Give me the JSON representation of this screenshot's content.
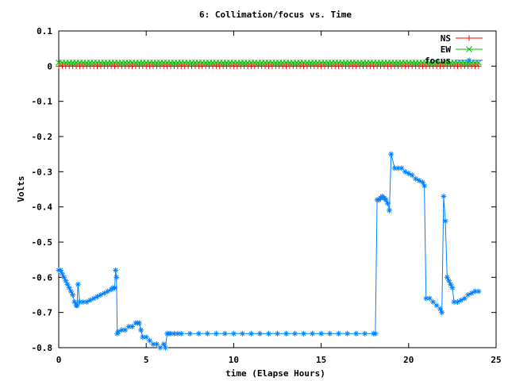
{
  "chart_data": {
    "type": "line",
    "title": "6: Collimation/focus vs. Time",
    "xlabel": "time (Elapse Hours)",
    "ylabel": "Volts",
    "xlim": [
      0,
      25
    ],
    "ylim": [
      -0.8,
      0.1
    ],
    "xticks": [
      0,
      5,
      10,
      15,
      20,
      25
    ],
    "yticks": [
      0.1,
      0,
      -0.1,
      -0.2,
      -0.3,
      -0.4,
      -0.5,
      -0.6,
      -0.7,
      -0.8
    ],
    "grid": false,
    "legend_position": "top-right",
    "series": [
      {
        "name": "NS",
        "color": "#ff0000",
        "marker": "plus",
        "x": [
          0,
          0.2,
          0.4,
          0.6,
          0.8,
          1,
          1.2,
          1.4,
          1.6,
          1.8,
          2,
          2.2,
          2.4,
          2.6,
          2.8,
          3,
          3.2,
          3.4,
          3.6,
          3.8,
          4,
          4.2,
          4.4,
          4.6,
          4.8,
          5,
          5.2,
          5.4,
          5.6,
          5.8,
          6,
          6.2,
          6.4,
          6.6,
          6.8,
          7,
          7.2,
          7.4,
          7.6,
          7.8,
          8,
          8.2,
          8.4,
          8.6,
          8.8,
          9,
          9.2,
          9.4,
          9.6,
          9.8,
          10,
          10.2,
          10.4,
          10.6,
          10.8,
          11,
          11.2,
          11.4,
          11.6,
          11.8,
          12,
          12.2,
          12.4,
          12.6,
          12.8,
          13,
          13.2,
          13.4,
          13.6,
          13.8,
          14,
          14.2,
          14.4,
          14.6,
          14.8,
          15,
          15.2,
          15.4,
          15.6,
          15.8,
          16,
          16.2,
          16.4,
          16.6,
          16.8,
          17,
          17.2,
          17.4,
          17.6,
          17.8,
          18,
          18.2,
          18.4,
          18.6,
          18.8,
          19,
          19.2,
          19.4,
          19.6,
          19.8,
          20,
          20.2,
          20.4,
          20.6,
          20.8,
          21,
          21.2,
          21.4,
          21.6,
          21.8,
          22,
          22.2,
          22.4,
          22.6,
          22.8,
          23,
          23.2,
          23.4,
          23.6,
          23.8,
          24
        ],
        "y_constant": 0.0
      },
      {
        "name": "EW",
        "color": "#00c000",
        "marker": "x",
        "x": [
          0,
          0.2,
          0.4,
          0.6,
          0.8,
          1,
          1.2,
          1.4,
          1.6,
          1.8,
          2,
          2.2,
          2.4,
          2.6,
          2.8,
          3,
          3.2,
          3.4,
          3.6,
          3.8,
          4,
          4.2,
          4.4,
          4.6,
          4.8,
          5,
          5.2,
          5.4,
          5.6,
          5.8,
          6,
          6.2,
          6.4,
          6.6,
          6.8,
          7,
          7.2,
          7.4,
          7.6,
          7.8,
          8,
          8.2,
          8.4,
          8.6,
          8.8,
          9,
          9.2,
          9.4,
          9.6,
          9.8,
          10,
          10.2,
          10.4,
          10.6,
          10.8,
          11,
          11.2,
          11.4,
          11.6,
          11.8,
          12,
          12.2,
          12.4,
          12.6,
          12.8,
          13,
          13.2,
          13.4,
          13.6,
          13.8,
          14,
          14.2,
          14.4,
          14.6,
          14.8,
          15,
          15.2,
          15.4,
          15.6,
          15.8,
          16,
          16.2,
          16.4,
          16.6,
          16.8,
          17,
          17.2,
          17.4,
          17.6,
          17.8,
          18,
          18.2,
          18.4,
          18.6,
          18.8,
          19,
          19.2,
          19.4,
          19.6,
          19.8,
          20,
          20.2,
          20.4,
          20.6,
          20.8,
          21,
          21.2,
          21.4,
          21.6,
          21.8,
          22,
          22.2,
          22.4,
          22.6,
          22.8,
          23,
          23.2,
          23.4,
          23.6,
          23.8,
          24
        ],
        "y_constant": 0.01
      },
      {
        "name": "focus",
        "color": "#0080ff",
        "marker": "star",
        "x": [
          0,
          0.1,
          0.2,
          0.3,
          0.4,
          0.5,
          0.6,
          0.7,
          0.8,
          0.9,
          1.0,
          1.05,
          1.1,
          1.2,
          1.4,
          1.6,
          1.8,
          2.0,
          2.2,
          2.4,
          2.6,
          2.8,
          3.0,
          3.1,
          3.2,
          3.25,
          3.3,
          3.35,
          3.4,
          3.6,
          3.8,
          4.0,
          4.2,
          4.4,
          4.5,
          4.6,
          4.7,
          4.8,
          5.0,
          5.2,
          5.4,
          5.6,
          5.8,
          6.0,
          6.1,
          6.2,
          6.3,
          6.4,
          6.6,
          6.8,
          7.0,
          7.5,
          8.0,
          8.5,
          9.0,
          9.5,
          10.0,
          10.5,
          11.0,
          11.5,
          12.0,
          12.5,
          13.0,
          13.5,
          14.0,
          14.5,
          15.0,
          15.5,
          16.0,
          16.5,
          17.0,
          17.5,
          18.0,
          18.1,
          18.2,
          18.3,
          18.4,
          18.5,
          18.6,
          18.7,
          18.8,
          18.9,
          19.0,
          19.2,
          19.4,
          19.6,
          19.8,
          20.0,
          20.2,
          20.4,
          20.6,
          20.8,
          20.9,
          21.0,
          21.2,
          21.4,
          21.6,
          21.8,
          21.9,
          22.0,
          22.1,
          22.2,
          22.3,
          22.4,
          22.5,
          22.6,
          22.8,
          23.0,
          23.2,
          23.4,
          23.6,
          23.8,
          24.0
        ],
        "y": [
          -0.58,
          -0.58,
          -0.59,
          -0.6,
          -0.61,
          -0.62,
          -0.63,
          -0.64,
          -0.65,
          -0.67,
          -0.68,
          -0.68,
          -0.62,
          -0.67,
          -0.67,
          -0.67,
          -0.665,
          -0.66,
          -0.655,
          -0.65,
          -0.645,
          -0.64,
          -0.635,
          -0.63,
          -0.63,
          -0.58,
          -0.6,
          -0.76,
          -0.755,
          -0.75,
          -0.75,
          -0.74,
          -0.74,
          -0.73,
          -0.73,
          -0.73,
          -0.75,
          -0.77,
          -0.77,
          -0.78,
          -0.79,
          -0.79,
          -0.8,
          -0.79,
          -0.8,
          -0.76,
          -0.76,
          -0.76,
          -0.76,
          -0.76,
          -0.76,
          -0.76,
          -0.76,
          -0.76,
          -0.76,
          -0.76,
          -0.76,
          -0.76,
          -0.76,
          -0.76,
          -0.76,
          -0.76,
          -0.76,
          -0.76,
          -0.76,
          -0.76,
          -0.76,
          -0.76,
          -0.76,
          -0.76,
          -0.76,
          -0.76,
          -0.76,
          -0.76,
          -0.38,
          -0.38,
          -0.375,
          -0.37,
          -0.375,
          -0.38,
          -0.39,
          -0.41,
          -0.25,
          -0.29,
          -0.29,
          -0.29,
          -0.3,
          -0.305,
          -0.31,
          -0.32,
          -0.325,
          -0.33,
          -0.34,
          -0.66,
          -0.66,
          -0.67,
          -0.68,
          -0.69,
          -0.7,
          -0.37,
          -0.44,
          -0.6,
          -0.61,
          -0.62,
          -0.63,
          -0.67,
          -0.67,
          -0.665,
          -0.66,
          -0.65,
          -0.645,
          -0.64,
          -0.64
        ]
      }
    ]
  }
}
